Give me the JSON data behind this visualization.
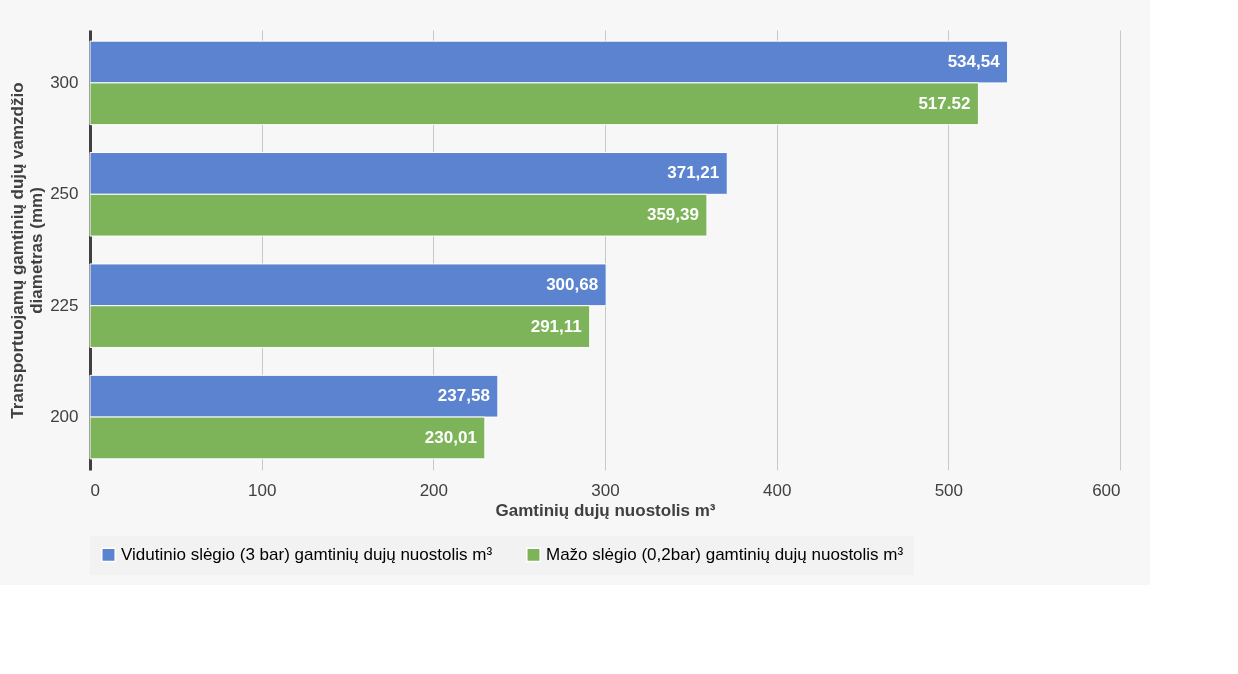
{
  "chart_data": {
    "type": "bar",
    "orientation": "horizontal",
    "xlabel": "Gamtinių dujų nuostolis m³",
    "ylabel": "Transportuojamų gamtinių dujų vamzdžio diametras (mm)",
    "categories": [
      "300",
      "250",
      "225",
      "200"
    ],
    "series": [
      {
        "name": "Vidutinio slėgio (3 bar) gamtinių dujų nuostolis m³",
        "color": "#5b83cf",
        "values": [
          534.54,
          371.21,
          300.68,
          237.58
        ],
        "value_labels": [
          "534,54",
          "371,21",
          "300,68",
          "237,58"
        ]
      },
      {
        "name": "Mažo slėgio (0,2bar) gamtinių dujų nuostolis m³",
        "color": "#7db45a",
        "values": [
          517.52,
          359.39,
          291.11,
          230.01
        ],
        "value_labels": [
          "517.52",
          "359,39",
          "291,11",
          "230,01"
        ]
      }
    ],
    "xlim": [
      0,
      600
    ],
    "xticks": [
      0,
      100,
      200,
      300,
      400,
      500,
      600
    ],
    "grid": "x",
    "legend": "bottom"
  }
}
